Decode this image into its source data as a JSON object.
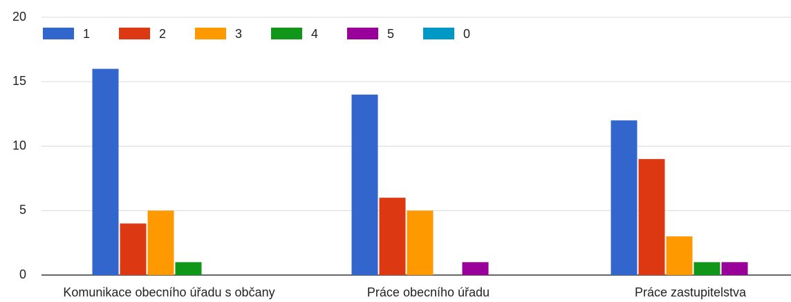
{
  "chart_data": {
    "type": "bar",
    "categories": [
      "Komunikace obecního úřadu s občany",
      "Práce obecního úřadu",
      "Práce zastupitelstva"
    ],
    "series": [
      {
        "name": "1",
        "color": "#3366cc",
        "values": [
          16,
          14,
          12
        ]
      },
      {
        "name": "2",
        "color": "#dc3912",
        "values": [
          4,
          6,
          9
        ]
      },
      {
        "name": "3",
        "color": "#ff9900",
        "values": [
          5,
          5,
          3
        ]
      },
      {
        "name": "4",
        "color": "#109618",
        "values": [
          1,
          0,
          1
        ]
      },
      {
        "name": "5",
        "color": "#990099",
        "values": [
          0,
          1,
          1
        ]
      },
      {
        "name": "0",
        "color": "#0099c6",
        "values": [
          0,
          0,
          0
        ]
      }
    ],
    "ylim": [
      0,
      20
    ],
    "yticks": [
      0,
      5,
      10,
      15,
      20
    ],
    "grid": true,
    "legend": "top"
  }
}
